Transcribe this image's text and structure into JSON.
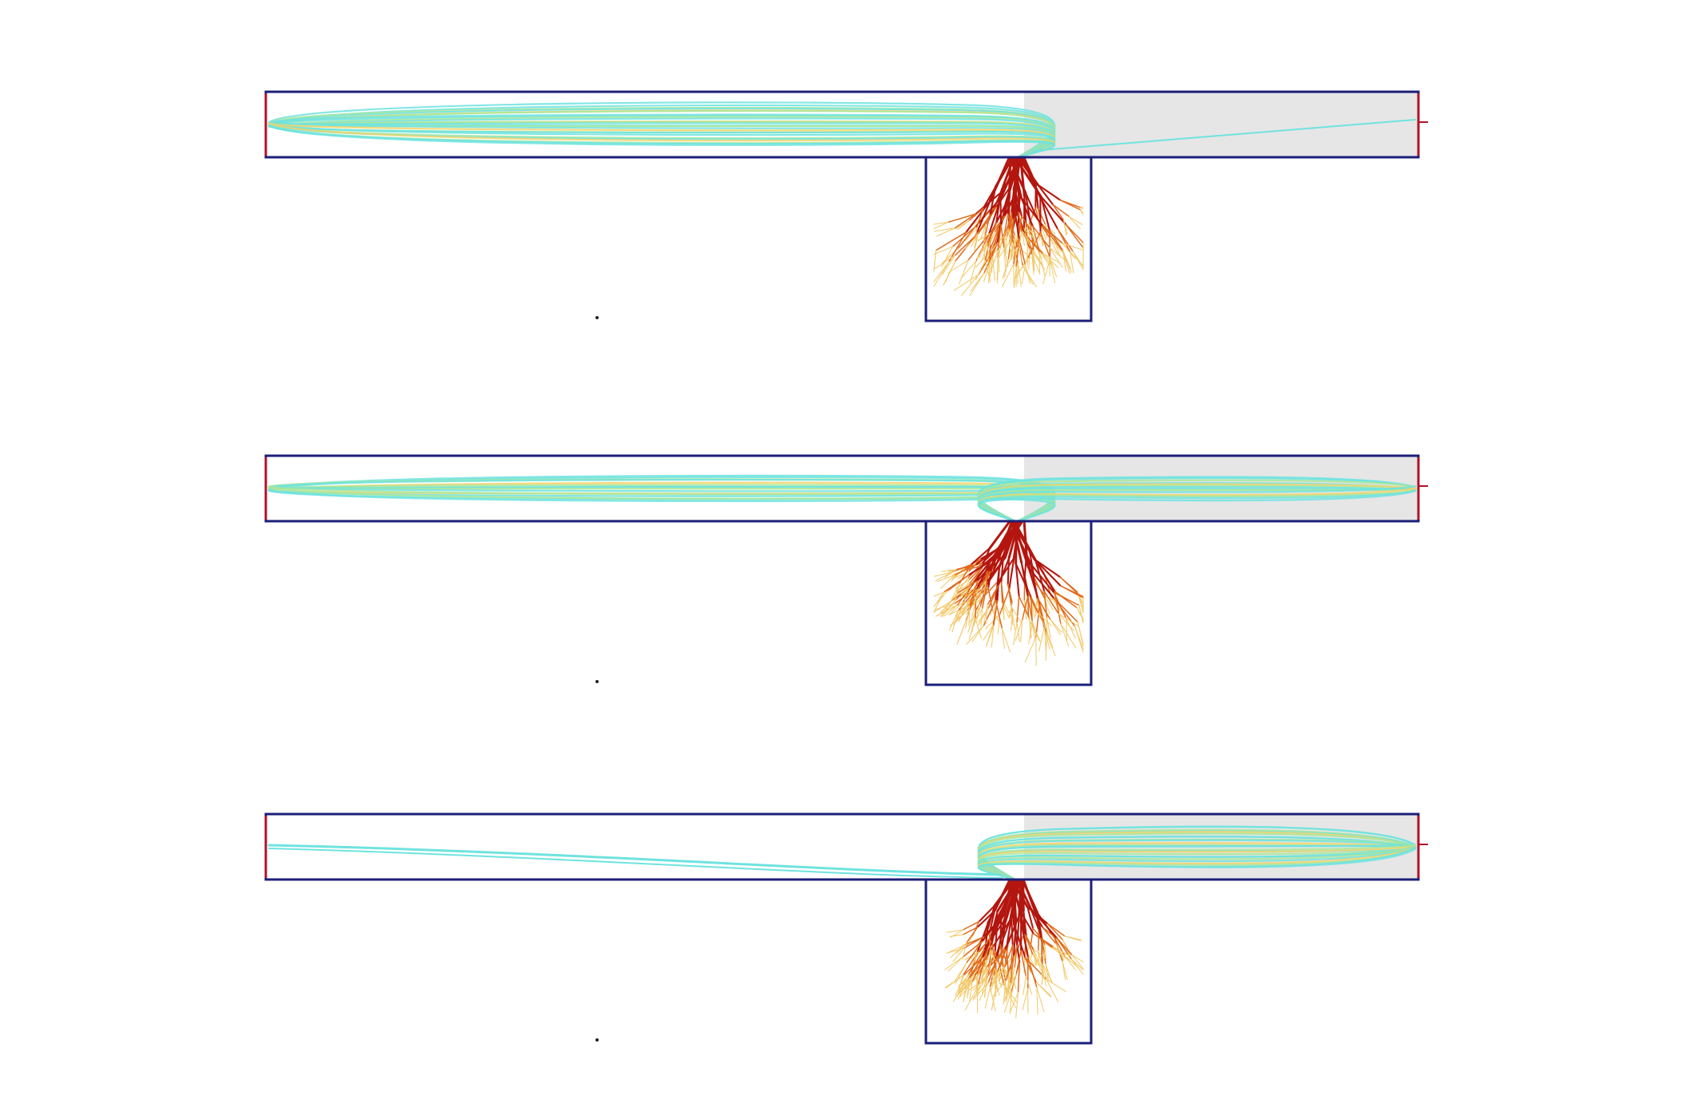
{
  "colors": {
    "background": "#ffffff",
    "frame_stroke": "#1c1f78",
    "channel_inlet_edge": "#b0122a",
    "shaded_region": "#e6e6e6",
    "streamline_cyan": "#6fe3df",
    "streamline_green": "#a8e69a",
    "streamline_yellow": "#f2d36b",
    "root_red": "#b3160f",
    "root_orange": "#e06a1c",
    "root_tip_yellow": "#f2c96a"
  },
  "panels": [
    {
      "id": "panel-1",
      "flow_bias": "left",
      "right_region_shaded": true
    },
    {
      "id": "panel-2",
      "flow_bias": "both",
      "right_region_shaded": true
    },
    {
      "id": "panel-3",
      "flow_bias": "right",
      "right_region_shaded": true
    }
  ]
}
